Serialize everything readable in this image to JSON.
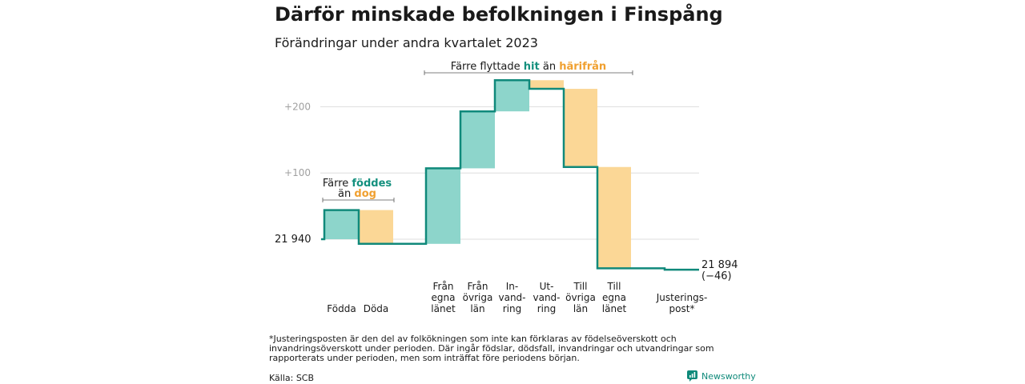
{
  "header": {
    "title": "Därför minskade befolkningen i Finspång",
    "subtitle": "Förändringar under andra kvartalet 2023"
  },
  "footer": {
    "footnote": "*Justeringsposten är den del av folkökningen som inte kan förklaras av födelseöverskott och invandringsöverskott under perioden. Där ingår födslar, dödsfall, invandringar och utvandringar som rapporterats under perioden, men som inträffat före periodens början.",
    "source": "Källa: SCB",
    "brand": "Newsworthy"
  },
  "chart_data": {
    "type": "waterfall",
    "title": "Därför minskade befolkningen i Finspång",
    "subtitle": "Förändringar under andra kvartalet 2023",
    "start_value": 21940,
    "start_label": "21  940",
    "end_value": 21894,
    "end_label": "21 894",
    "end_change_label": "(−46)",
    "y_ticks": [
      {
        "value": 100,
        "label": "+100"
      },
      {
        "value": 200,
        "label": "+200"
      }
    ],
    "y_range_relative": [
      -60,
      240
    ],
    "grid": true,
    "steps": [
      {
        "label": [
          "Födda"
        ],
        "change": 44,
        "kind": "inflow"
      },
      {
        "label": [
          "Döda"
        ],
        "change": -51,
        "kind": "outflow"
      },
      {
        "label": [
          "Från",
          "egna",
          "länet"
        ],
        "change": 114,
        "kind": "inflow"
      },
      {
        "label": [
          "Från",
          "övriga",
          "län"
        ],
        "change": 86,
        "kind": "inflow"
      },
      {
        "label": [
          "In-",
          "vand-",
          "ring"
        ],
        "change": 47,
        "kind": "inflow"
      },
      {
        "label": [
          "Ut-",
          "vand-",
          "ring"
        ],
        "change": -13,
        "kind": "outflow"
      },
      {
        "label": [
          "Till",
          "övriga",
          "län"
        ],
        "change": -118,
        "kind": "outflow"
      },
      {
        "label": [
          "Till",
          "egna",
          "länet"
        ],
        "change": -153,
        "kind": "outflow"
      },
      {
        "label": [
          "Justerings-",
          "post*"
        ],
        "change": -2,
        "kind": "adjustment"
      }
    ],
    "colors": {
      "inflow": "#8dd5cb",
      "outflow": "#fbd796",
      "line": "#10897b",
      "grid": "#dddddd"
    },
    "annotations": [
      {
        "id": "births",
        "line1": "Färre ",
        "line1_hl": "föddes",
        "line2": "än ",
        "line2_hl": "dog",
        "groups": [
          0,
          1
        ]
      },
      {
        "id": "moves",
        "prefix": "Färre flyttade ",
        "hl1": "hit",
        "middle": " än ",
        "hl2": "härifrån",
        "groups": [
          2,
          7
        ]
      }
    ],
    "highlight_colors": {
      "teal": "#14907e",
      "orange": "#f0a030"
    }
  }
}
